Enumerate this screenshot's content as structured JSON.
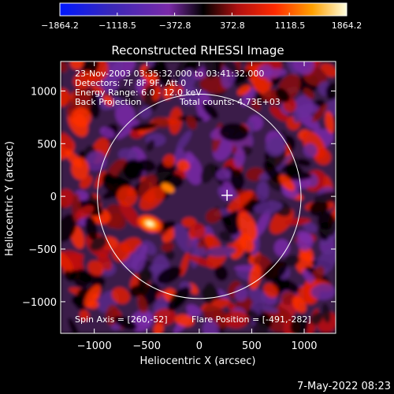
{
  "chart_data": {
    "type": "heatmap",
    "title": "Reconstructed RHESSI Image",
    "xlabel": "Heliocentric X (arcsec)",
    "ylabel": "Heliocentric Y (arcsec)",
    "xlim": [
      -1320,
      1300
    ],
    "ylim": [
      -1300,
      1280
    ],
    "x_ticks": [
      -1000,
      -500,
      0,
      500,
      1000
    ],
    "x_tick_labels": [
      "−1000",
      "−500",
      "0",
      "500",
      "1000"
    ],
    "y_ticks": [
      1000,
      500,
      0,
      -500,
      -1000
    ],
    "y_tick_labels": [
      "1000",
      "500",
      "0",
      "−500",
      "−1000"
    ],
    "colorbar": {
      "range": [
        -1864.2,
        1864.2
      ],
      "ticks": [
        -1864.2,
        -1118.5,
        -372.8,
        372.8,
        1118.5,
        1864.2
      ],
      "tick_labels": [
        "−1864.2",
        "−1118.5",
        "−372.8",
        "372.8",
        "1118.5",
        "1864.2"
      ],
      "colors": [
        "#0018ff",
        "#4a2a9a",
        "#7a2aa8",
        "#000000",
        "#c01010",
        "#ff2a00",
        "#ffa000",
        "#ffffd0"
      ]
    },
    "annotations": [
      "23-Nov-2003 03:35:32.000 to 03:41:32.000",
      "Detectors: 7F 8F 9F, Att 0",
      "Energy Range: 6.0 - 12.0 keV",
      "Back Projection",
      "Total counts: 4.73E+03",
      "Spin Axis = [260,-52]",
      "Flare Position = [-491,-282]"
    ],
    "solar_limb": {
      "center": [
        0,
        0
      ],
      "radius_arcsec": 970
    },
    "marker_position": [
      265,
      10
    ],
    "bright_source_position": [
      -470,
      -260
    ]
  },
  "footer": {
    "date": "7-May-2022 08:23"
  },
  "colors": {
    "background": "#000000",
    "text": "#ffffff",
    "limb": "#ffffff"
  }
}
